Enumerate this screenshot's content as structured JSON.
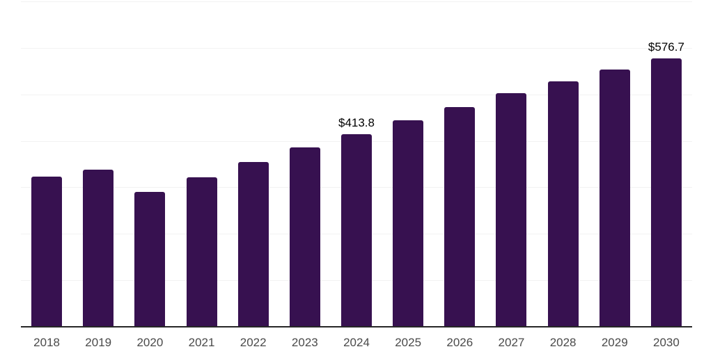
{
  "chart_data": {
    "type": "bar",
    "categories": [
      "2018",
      "2019",
      "2020",
      "2021",
      "2022",
      "2023",
      "2024",
      "2025",
      "2026",
      "2027",
      "2028",
      "2029",
      "2030"
    ],
    "values": [
      323,
      338,
      290,
      321,
      355,
      386,
      413.8,
      444,
      473,
      502,
      528,
      554,
      576.7
    ],
    "data_labels": {
      "2024": "$413.8",
      "2030": "$576.7"
    },
    "ylim": [
      0,
      700
    ],
    "gridline_step": 100,
    "grid": true,
    "legend": false,
    "colors": {
      "bar": "#371150",
      "gridline": "#f2f2f2",
      "axis_line": "#262626",
      "tick_label": "#4a4a4a",
      "data_label": "#000000",
      "background": "#ffffff"
    }
  }
}
